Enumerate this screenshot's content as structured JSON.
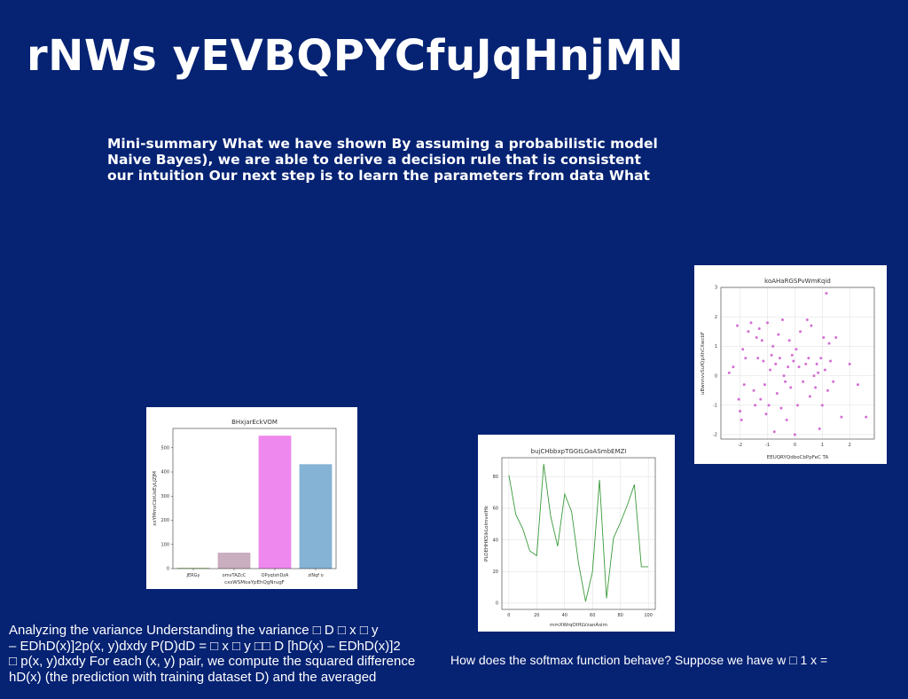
{
  "slide": {
    "title": "rNWs yEVBQPYCfuJqHnjMN",
    "summary_lines": [
      "Mini-summary What we have shown By assuming a probabilistic model",
      "Naive Bayes), we are able to derive a decision rule that is consistent",
      "our intuition Our next step is to learn the parameters from data What"
    ],
    "left_text_lines": [
      "Analyzing the variance Understanding the variance □ D □ x □ y",
      "– EDhD(x)]2p(x, y)dxdy P(D)dD = □ x □ y □□ D [hD(x) – EDhD(x)]2",
      "□ p(x, y)dxdy For each (x, y) pair, we compute the squared difference",
      "hD(x) (the prediction with training dataset D) and the averaged"
    ],
    "right_text": "How does the softmax function behave? Suppose we have w □ 1 x ="
  },
  "chart_data": [
    {
      "type": "bar",
      "title": "BHxjarEckVOM",
      "xlabel": "cxsWSMoaYpEhQgNrugF",
      "ylabel": "xxYMmxCbtUoEyLJZJM",
      "categories": [
        "JERGy",
        "omvTAZcC",
        "OPyqtshDzA",
        "zlNqf o"
      ],
      "values": [
        3,
        66,
        550,
        432
      ],
      "colors": [
        "#8fbf6f",
        "#c9aebf",
        "#ee88ee",
        "#85b3d5"
      ],
      "ylim": [
        0,
        580
      ],
      "yticks": [
        0,
        100,
        200,
        300,
        400,
        500
      ],
      "grid": false
    },
    {
      "type": "line",
      "title": "bujCHbbxpTGGtLGoASmbEMZI",
      "xlabel": "mmXWrqOIHLVzanAsim",
      "ylabel": "PLOEHHKSikLoImvelHk",
      "color": "#3a9a3a",
      "x": [
        0,
        5,
        10,
        15,
        20,
        25,
        30,
        35,
        40,
        45,
        50,
        55,
        60,
        65,
        70,
        75,
        80,
        85,
        90,
        95,
        100
      ],
      "y": [
        81,
        56,
        47,
        33,
        30,
        88,
        55,
        36,
        69,
        58,
        25,
        1,
        20,
        78,
        3,
        41,
        51,
        62,
        75,
        23,
        23
      ],
      "xlim": [
        -5,
        105
      ],
      "ylim": [
        -4,
        92
      ],
      "xticks": [
        0,
        20,
        40,
        60,
        80,
        100
      ],
      "yticks": [
        0,
        20,
        40,
        60,
        80
      ],
      "grid": true
    },
    {
      "type": "scatter",
      "title": "koAHaRGSPvWmKqid",
      "xlabel": "EEUQRYQdboCbPpFeC TA",
      "ylabel": "uBwnnvvSufQpXhCXwcbF",
      "color": "#cc55cc",
      "x": [
        -2.4,
        -2.25,
        -2.1,
        -2.05,
        -2.0,
        -1.95,
        -1.9,
        -1.85,
        -1.8,
        -1.7,
        -1.6,
        -1.5,
        -1.45,
        -1.4,
        -1.35,
        -1.3,
        -1.25,
        -1.2,
        -1.15,
        -1.1,
        -1.05,
        -1.0,
        -0.95,
        -0.9,
        -0.85,
        -0.8,
        -0.75,
        -0.7,
        -0.65,
        -0.6,
        -0.55,
        -0.5,
        -0.45,
        -0.4,
        -0.35,
        -0.3,
        -0.25,
        -0.2,
        -0.15,
        -0.1,
        -0.05,
        0.0,
        0.05,
        0.1,
        0.15,
        0.2,
        0.3,
        0.4,
        0.45,
        0.5,
        0.55,
        0.6,
        0.7,
        0.75,
        0.8,
        0.85,
        0.9,
        0.95,
        1.0,
        1.05,
        1.1,
        1.15,
        1.2,
        1.25,
        1.3,
        1.4,
        1.5,
        1.7,
        2.0,
        2.3,
        2.6
      ],
      "y": [
        0.1,
        0.3,
        1.7,
        -0.8,
        -1.2,
        -1.5,
        0.9,
        -0.3,
        0.6,
        1.5,
        1.8,
        -0.5,
        -1.0,
        1.3,
        0.6,
        1.6,
        -0.8,
        1.2,
        0.5,
        -0.3,
        -1.3,
        1.8,
        -1.0,
        0.2,
        0.7,
        1.0,
        -1.9,
        0.4,
        -0.6,
        1.4,
        0.6,
        -1.1,
        1.9,
        0.0,
        -0.2,
        -1.5,
        0.3,
        1.2,
        -0.4,
        0.7,
        0.5,
        -2.0,
        0.9,
        -1.0,
        0.3,
        1.5,
        -0.2,
        0.4,
        1.9,
        0.6,
        -0.7,
        1.7,
        0.0,
        -0.4,
        0.4,
        0.1,
        -1.8,
        0.6,
        -1.0,
        1.3,
        0.2,
        2.8,
        -0.5,
        1.1,
        0.5,
        -0.2,
        1.3,
        -1.4,
        0.4,
        -0.3,
        -1.4
      ],
      "xlim": [
        -2.7,
        2.9
      ],
      "ylim": [
        -2.15,
        3.0
      ],
      "xticks": [
        -2,
        -1,
        0,
        1,
        2
      ],
      "yticks": [
        -2,
        -1,
        0,
        1,
        2,
        3
      ],
      "grid": true
    }
  ]
}
